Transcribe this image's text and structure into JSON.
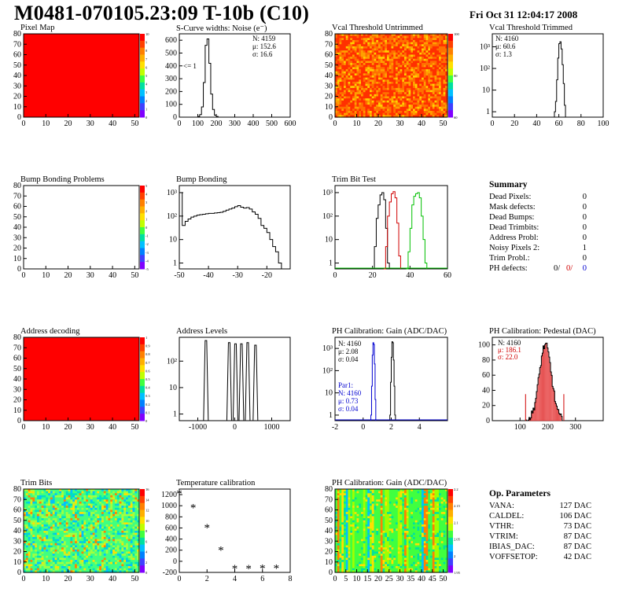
{
  "page": {
    "title": "M0481-070105.23:09 T-10b (C10)",
    "date": "Fri Oct 31 12:04:17 2008"
  },
  "colors": {
    "hist": "#000000",
    "red": "#d00000",
    "green": "#00c000",
    "blue": "#0000d0",
    "map_fill": "#ff0000"
  },
  "chart_data": [
    {
      "id": "pixel-map",
      "type": "heatmap",
      "title": "Pixel Map",
      "xlim": [
        0,
        52
      ],
      "ylim": [
        0,
        80
      ],
      "xticks": [
        "0",
        "10",
        "20",
        "30",
        "40",
        "50"
      ],
      "yticks": [
        "0",
        "10",
        "20",
        "30",
        "40",
        "50",
        "60",
        "70",
        "80"
      ],
      "zticks": [
        "0",
        "1",
        "2",
        "3",
        "4",
        "5",
        "6",
        "7",
        "8",
        "9",
        "10"
      ],
      "fill": "uniform max (10)"
    },
    {
      "id": "scurve-noise",
      "type": "histogram",
      "title": "S-Curve widths: Noise (e⁻)",
      "xlim": [
        0,
        600
      ],
      "ylim": [
        0,
        650
      ],
      "xticks": [
        "0",
        "100",
        "200",
        "300",
        "400",
        "500",
        "600"
      ],
      "yticks": [
        "0",
        "100",
        "200",
        "300",
        "400",
        "500",
        "600"
      ],
      "stats": [
        "N: 4159",
        "μ: 152.6",
        "σ: 16.6"
      ],
      "annotation": "<= 1",
      "bins": {
        "x0": 90,
        "dx": 10,
        "values": [
          0,
          5,
          20,
          80,
          270,
          560,
          610,
          420,
          180,
          60,
          15,
          5,
          0,
          0,
          0
        ]
      }
    },
    {
      "id": "vcal-untrimmed",
      "type": "heatmap",
      "title": "Vcal Threshold Untrimmed",
      "xlim": [
        0,
        52
      ],
      "ylim": [
        0,
        80
      ],
      "xticks": [
        "0",
        "10",
        "20",
        "30",
        "40",
        "50"
      ],
      "yticks": [
        "0",
        "10",
        "20",
        "30",
        "40",
        "50",
        "60",
        "70",
        "80"
      ],
      "zticks": [
        "60",
        "80",
        "100"
      ]
    },
    {
      "id": "vcal-trimmed",
      "type": "histogram",
      "title": "Vcal Threshold Trimmed",
      "xlim": [
        0,
        100
      ],
      "log_y": true,
      "xticks": [
        "0",
        "20",
        "40",
        "60",
        "80",
        "100"
      ],
      "yticks": [
        "1",
        "10",
        "10²",
        "10³"
      ],
      "stats": [
        "N: 4160",
        "μ: 60.6",
        "σ:  1.3"
      ],
      "bins": {
        "x0": 56,
        "dx": 1,
        "values": [
          1,
          3,
          30,
          300,
          1400,
          1700,
          800,
          150,
          20,
          2
        ]
      }
    },
    {
      "id": "bump-problems",
      "type": "heatmap",
      "title": "Bump Bonding Problems",
      "xlim": [
        0,
        52
      ],
      "ylim": [
        0,
        80
      ],
      "xticks": [
        "0",
        "10",
        "20",
        "30",
        "40",
        "50"
      ],
      "yticks": [
        "0",
        "10",
        "20",
        "30",
        "40",
        "50",
        "60",
        "70",
        "80"
      ],
      "zticks": [
        "-5",
        "-4",
        "-3",
        "-2",
        "-1",
        "0",
        "1",
        "2",
        "3",
        "4",
        "5"
      ],
      "fill": "empty"
    },
    {
      "id": "bump-bonding",
      "type": "histogram",
      "title": "Bump Bonding",
      "xlim": [
        -50,
        -12
      ],
      "log_y": true,
      "xticks": [
        "-50",
        "-40",
        "-30",
        "-20"
      ],
      "yticks": [
        "1",
        "10",
        "10²",
        "10³"
      ],
      "bins": {
        "x0": -50,
        "dx": 1,
        "values": [
          1000,
          40,
          60,
          75,
          90,
          100,
          110,
          115,
          120,
          125,
          130,
          130,
          135,
          140,
          145,
          160,
          180,
          200,
          220,
          250,
          280,
          240,
          220,
          230,
          200,
          150,
          120,
          80,
          40,
          30,
          20,
          10,
          5,
          3,
          1,
          0.5
        ]
      }
    },
    {
      "id": "trim-bit-test",
      "type": "histogram",
      "title": "Trim Bit Test",
      "xlim": [
        0,
        60
      ],
      "log_y": true,
      "xticks": [
        "0",
        "20",
        "40",
        "60"
      ],
      "yticks": [
        "1",
        "10",
        "10²",
        "10³"
      ],
      "series": [
        {
          "color": "black",
          "x0": 20,
          "dx": 1,
          "values": [
            0.5,
            5,
            80,
            300,
            800,
            1000,
            500,
            30,
            1
          ]
        },
        {
          "color": "red",
          "x0": 26,
          "dx": 1,
          "values": [
            0.5,
            5,
            100,
            400,
            900,
            1100,
            600,
            50,
            2
          ]
        },
        {
          "color": "green",
          "x0": 38,
          "dx": 1,
          "values": [
            0.5,
            3,
            30,
            300,
            700,
            900,
            1000,
            600,
            100,
            10,
            1
          ]
        }
      ]
    },
    {
      "id": "address-decoding",
      "type": "heatmap",
      "title": "Address decoding",
      "xlim": [
        0,
        52
      ],
      "ylim": [
        0,
        80
      ],
      "xticks": [
        "0",
        "10",
        "20",
        "30",
        "40",
        "50"
      ],
      "yticks": [
        "0",
        "10",
        "20",
        "30",
        "40",
        "50",
        "60",
        "70",
        "80"
      ],
      "zticks": [
        "0",
        "0.1",
        "0.2",
        "0.3",
        "0.4",
        "0.5",
        "0.6",
        "0.7",
        "0.8",
        "0.9",
        "1"
      ],
      "fill": "uniform max (1)"
    },
    {
      "id": "address-levels",
      "type": "histogram",
      "title": "Address Levels",
      "xlim": [
        -1500,
        1500
      ],
      "log_y": true,
      "xticks": [
        "-1000",
        "0",
        "1000"
      ],
      "yticks": [
        "1",
        "10",
        "10²"
      ],
      "peaks": [
        [
          -780,
          600
        ],
        [
          -150,
          500
        ],
        [
          20,
          450
        ],
        [
          180,
          450
        ],
        [
          350,
          500
        ],
        [
          560,
          400
        ]
      ]
    },
    {
      "id": "ph-gain",
      "type": "histogram",
      "title": "PH Calibration: Gain (ADC/DAC)",
      "xlim": [
        -2,
        6
      ],
      "log_y": true,
      "xticks": [
        "-2",
        "0",
        "2",
        "4"
      ],
      "yticks": [
        "1",
        "10",
        "10²",
        "10³"
      ],
      "stats": [
        "N: 4160",
        "μ: 2.08",
        "σ: 0.04"
      ],
      "stats2": [
        "Par1:",
        "N: 4160",
        "μ: 0.73",
        "σ: 0.04"
      ]
    },
    {
      "id": "ph-pedestal",
      "type": "histogram",
      "title": "PH Calibration: Pedestal (DAC)",
      "xlim": [
        0,
        400
      ],
      "ylim": [
        0,
        110
      ],
      "xticks": [
        "100",
        "200",
        "300"
      ],
      "yticks": [
        "0",
        "20",
        "40",
        "60",
        "80",
        "100"
      ],
      "stats": [
        "N: 4160",
        "μ: 186.1",
        "σ: 22.0"
      ]
    },
    {
      "id": "trim-bits",
      "type": "heatmap",
      "title": "Trim Bits",
      "xlim": [
        0,
        52
      ],
      "ylim": [
        0,
        80
      ],
      "xticks": [
        "0",
        "10",
        "20",
        "30",
        "40",
        "50"
      ],
      "yticks": [
        "0",
        "10",
        "20",
        "30",
        "40",
        "50",
        "60",
        "70",
        "80"
      ],
      "zticks": [
        "0",
        "2",
        "4",
        "6",
        "8",
        "10",
        "12",
        "14",
        "16"
      ]
    },
    {
      "id": "temperature-calibration",
      "type": "scatter",
      "title": "Temperature calibration",
      "xlim": [
        0,
        8
      ],
      "ylim": [
        -200,
        1300
      ],
      "xticks": [
        "0",
        "2",
        "4",
        "6",
        "8"
      ],
      "yticks": [
        "-200",
        "0",
        "200",
        "400",
        "600",
        "800",
        "1000",
        "1200"
      ],
      "points": [
        [
          0,
          1220
        ],
        [
          1,
          970
        ],
        [
          2,
          610
        ],
        [
          3,
          200
        ],
        [
          4,
          -130
        ],
        [
          5,
          -130
        ],
        [
          6,
          -120
        ],
        [
          7,
          -120
        ]
      ]
    },
    {
      "id": "ph-gain-map",
      "type": "heatmap",
      "title": "PH Calibration: Gain (ADC/DAC)",
      "xlim": [
        0,
        52
      ],
      "ylim": [
        0,
        80
      ],
      "xticks": [
        "0",
        "5",
        "10",
        "15",
        "20",
        "25",
        "30",
        "35",
        "40",
        "45",
        "50"
      ],
      "yticks": [
        "0",
        "10",
        "20",
        "30",
        "40",
        "50",
        "60",
        "70",
        "80"
      ],
      "zticks": [
        "1.95",
        "2",
        "2.05",
        "2.1",
        "2.15",
        "2.2"
      ]
    }
  ],
  "summary": {
    "title": "Summary",
    "rows": [
      {
        "label": "Dead Pixels:",
        "value": "0"
      },
      {
        "label": "Mask defects:",
        "value": "0"
      },
      {
        "label": "Dead Bumps:",
        "value": "0"
      },
      {
        "label": "Dead Trimbits:",
        "value": "0"
      },
      {
        "label": "Address Probl:",
        "value": "0"
      },
      {
        "label": "Noisy Pixels 2:",
        "value": "1"
      },
      {
        "label": "Trim Probl.:",
        "value": "0"
      }
    ],
    "ph_defects": {
      "label": "PH defects:",
      "v1": "0/",
      "v2": "0/",
      "v3": "0"
    }
  },
  "op_params": {
    "title": "Op. Parameters",
    "rows": [
      {
        "label": "VANA:",
        "value": "127 DAC"
      },
      {
        "label": "CALDEL:",
        "value": "106 DAC"
      },
      {
        "label": "VTHR:",
        "value": "73 DAC"
      },
      {
        "label": "VTRIM:",
        "value": "87 DAC"
      },
      {
        "label": "IBIAS_DAC:",
        "value": "87 DAC"
      },
      {
        "label": "VOFFSETOP:",
        "value": "42 DAC"
      }
    ]
  }
}
